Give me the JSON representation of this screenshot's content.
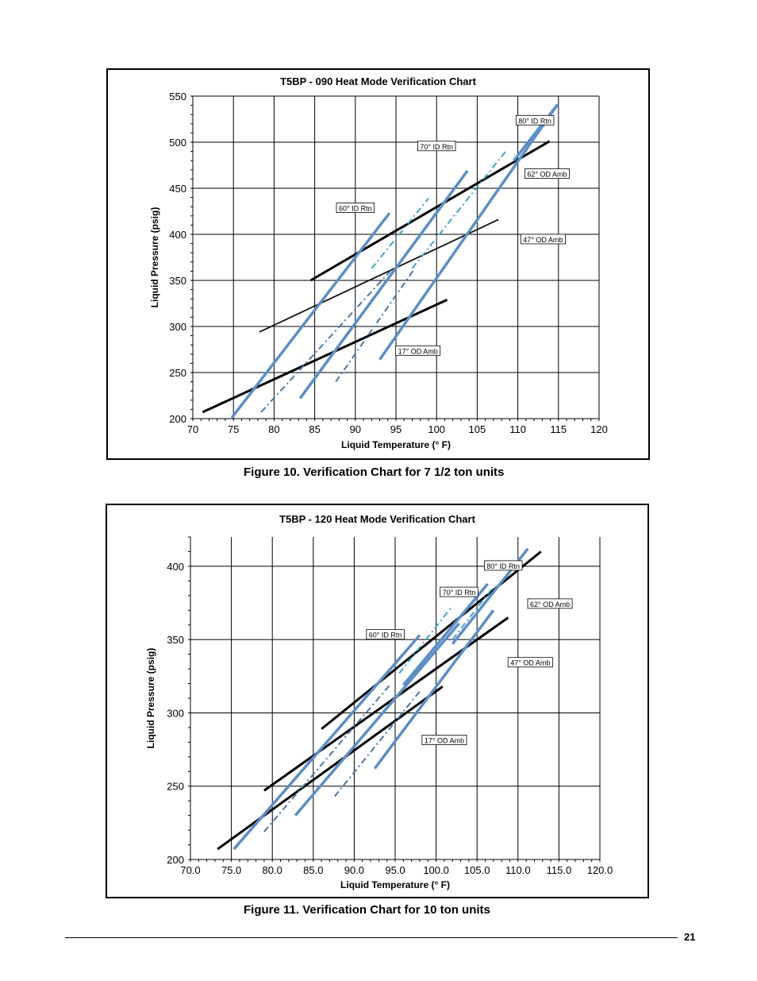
{
  "page": {
    "number": "21"
  },
  "chart_data": [
    {
      "type": "line",
      "title": "T5BP - 090 Heat Mode Verification Chart",
      "caption": "Figure 10. Verification Chart for 7 1/2 ton units",
      "xlabel": "Liquid Temperature (° F)",
      "ylabel": "Liquid Pressure (psig)",
      "xlim": [
        70,
        120
      ],
      "ylim": [
        200,
        550
      ],
      "x_ticks": [
        "70",
        "75",
        "80",
        "85",
        "90",
        "95",
        "100",
        "105",
        "110",
        "115",
        "120"
      ],
      "y_ticks": [
        "200",
        "250",
        "300",
        "350",
        "400",
        "450",
        "500",
        "550"
      ],
      "grid": true,
      "series": [
        {
          "name": "17° OD Amb",
          "style": "black",
          "points": [
            [
              71.2,
              207
            ],
            [
              101.3,
              329
            ]
          ]
        },
        {
          "name": "47° OD Amb",
          "style": "thin",
          "points": [
            [
              78.2,
              294
            ],
            [
              107.6,
              416
            ]
          ]
        },
        {
          "name": "62° OD Amb",
          "style": "black",
          "points": [
            [
              84.5,
              350
            ],
            [
              113.9,
              501
            ]
          ]
        },
        {
          "name": "60° ID Rtn",
          "style": "blue",
          "points": [
            [
              74.8,
              201
            ],
            [
              94.2,
              423
            ]
          ]
        },
        {
          "style": "blue",
          "points": [
            [
              83.2,
              222
            ],
            [
              103.8,
              469
            ]
          ]
        },
        {
          "name": "70° ID Rtn",
          "style": "blue",
          "points": [
            [
              93.0,
              264
            ],
            [
              114.9,
              541
            ]
          ]
        },
        {
          "style": "dash",
          "points": [
            [
              78.4,
              207
            ],
            [
              94.5,
              362
            ]
          ]
        },
        {
          "style": "dash",
          "points": [
            [
              87.6,
              240
            ],
            [
              97.3,
              363
            ]
          ]
        },
        {
          "style": "dash-cyan",
          "points": [
            [
              92.0,
              363
            ],
            [
              99.0,
              439
            ]
          ]
        },
        {
          "style": "dash-cyan",
          "points": [
            [
              97.0,
              363
            ],
            [
              108.5,
              490
            ]
          ]
        },
        {
          "name": "80° ID Rtn",
          "style": "blue",
          "points": [
            [
              109.5,
              480
            ],
            [
              114.9,
              541
            ]
          ]
        }
      ],
      "labels": [
        {
          "text": "80° ID Rtn",
          "at": [
            112.1,
            523
          ]
        },
        {
          "text": "70° ID Rtn",
          "at": [
            100.0,
            495
          ]
        },
        {
          "text": "60° ID Rtn",
          "at": [
            90.0,
            428
          ]
        },
        {
          "text": "62° OD Amb",
          "at": [
            113.6,
            465
          ]
        },
        {
          "text": "47° OD Amb",
          "at": [
            113.1,
            394
          ]
        },
        {
          "text": "17° OD Amb",
          "at": [
            97.7,
            273
          ]
        }
      ]
    },
    {
      "type": "line",
      "title": "T5BP - 120 Heat Mode Verification Chart",
      "caption": "Figure 11. Verification Chart for 10 ton units",
      "xlabel": "Liquid Temperature (° F)",
      "ylabel": "Liquid Pressure (psig)",
      "xlim": [
        70,
        120
      ],
      "ylim": [
        200,
        420
      ],
      "x_ticks": [
        "70.0",
        "75.0",
        "80.0",
        "85.0",
        "90.0",
        "95.0",
        "100.0",
        "105.0",
        "110.0",
        "115.0",
        "120.0"
      ],
      "y_ticks": [
        "200",
        "250",
        "300",
        "350",
        "400"
      ],
      "grid": true,
      "series": [
        {
          "name": "17° OD Amb",
          "style": "black",
          "points": [
            [
              73.3,
              207
            ],
            [
              100.8,
              318
            ]
          ]
        },
        {
          "name": "47° OD Amb",
          "style": "black",
          "points": [
            [
              79.0,
              247
            ],
            [
              108.8,
              365
            ]
          ]
        },
        {
          "name": "62° OD Amb",
          "style": "black",
          "points": [
            [
              86.0,
              289
            ],
            [
              112.8,
              410
            ]
          ]
        },
        {
          "name": "60° ID Rtn",
          "style": "blue",
          "points": [
            [
              75.3,
              207
            ],
            [
              98.0,
              353
            ]
          ]
        },
        {
          "style": "blue",
          "points": [
            [
              82.8,
              230
            ],
            [
              102.8,
              361
            ]
          ]
        },
        {
          "style": "blue",
          "points": [
            [
              92.5,
              262
            ],
            [
              107.0,
              370
            ]
          ]
        },
        {
          "name": "70° ID Rtn",
          "style": "blue",
          "points": [
            [
              96.0,
              319
            ],
            [
              106.3,
              388
            ]
          ]
        },
        {
          "name": "80° ID Rtn",
          "style": "blue",
          "points": [
            [
              102.0,
              347
            ],
            [
              111.2,
              412
            ]
          ]
        },
        {
          "style": "dash",
          "points": [
            [
              79.0,
              219
            ],
            [
              94.5,
              320
            ]
          ]
        },
        {
          "style": "dash",
          "points": [
            [
              87.6,
              243
            ],
            [
              98.2,
              316
            ]
          ]
        },
        {
          "style": "dash-cyan",
          "points": [
            [
              95.5,
              327
            ],
            [
              102.0,
              373
            ]
          ]
        },
        {
          "style": "dash-cyan",
          "points": [
            [
              102.0,
              350
            ],
            [
              107.0,
              386
            ]
          ]
        }
      ],
      "labels": [
        {
          "text": "80° ID Rtn",
          "at": [
            108.2,
            400
          ]
        },
        {
          "text": "70° ID Rtn",
          "at": [
            102.8,
            382
          ]
        },
        {
          "text": "60° ID Rtn",
          "at": [
            93.8,
            353
          ]
        },
        {
          "text": "62° OD Amb",
          "at": [
            113.9,
            374
          ]
        },
        {
          "text": "47° OD Amb",
          "at": [
            111.5,
            334
          ]
        },
        {
          "text": "17° OD Amb",
          "at": [
            101.0,
            281
          ]
        }
      ]
    }
  ]
}
